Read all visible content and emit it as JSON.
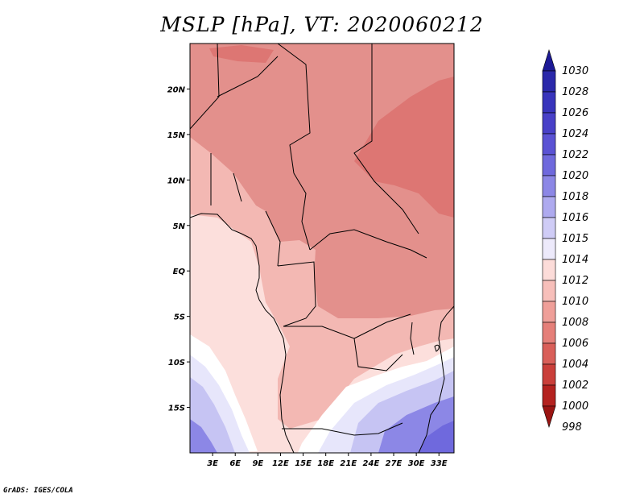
{
  "title": "MSLP [hPa], VT: 2020060212",
  "credit": "GrADS: IGES/COLA",
  "map": {
    "region": "Central and Southern Africa",
    "lon_range": [
      0,
      35
    ],
    "lat_range": [
      -20,
      25
    ],
    "lon_ticks": [
      {
        "value": 3,
        "label": "3E"
      },
      {
        "value": 6,
        "label": "6E"
      },
      {
        "value": 9,
        "label": "9E"
      },
      {
        "value": 12,
        "label": "12E"
      },
      {
        "value": 15,
        "label": "15E"
      },
      {
        "value": 18,
        "label": "18E"
      },
      {
        "value": 21,
        "label": "21E"
      },
      {
        "value": 24,
        "label": "24E"
      },
      {
        "value": 27,
        "label": "27E"
      },
      {
        "value": 30,
        "label": "30E"
      },
      {
        "value": 33,
        "label": "33E"
      }
    ],
    "lat_ticks": [
      {
        "value": 20,
        "label": "20N"
      },
      {
        "value": 15,
        "label": "15N"
      },
      {
        "value": 10,
        "label": "10N"
      },
      {
        "value": 5,
        "label": "5N"
      },
      {
        "value": 0,
        "label": "EQ"
      },
      {
        "value": -5,
        "label": "5S"
      },
      {
        "value": -10,
        "label": "10S"
      },
      {
        "value": -15,
        "label": "15S"
      }
    ]
  },
  "colorbar": {
    "levels": [
      "1030",
      "1028",
      "1026",
      "1024",
      "1022",
      "1020",
      "1018",
      "1016",
      "1015",
      "1014",
      "1012",
      "1010",
      "1008",
      "1006",
      "1004",
      "1002",
      "1000",
      "998"
    ],
    "colors": [
      "#1d1a96",
      "#2a28aa",
      "#3834bc",
      "#4840c8",
      "#5a52d4",
      "#6f69dd",
      "#8c87e6",
      "#aeaaef",
      "#cfccf6",
      "#edeafb",
      "#fcdcd9",
      "#f7bfba",
      "#ef9f99",
      "#e57f79",
      "#d95f59",
      "#ca3f3a",
      "#b4221f",
      "#9a1412"
    ]
  },
  "pressure_zones": [
    {
      "level": "1008-1010",
      "color": "#e3908c"
    },
    {
      "level": "1006-1008",
      "color": "#dd7673"
    },
    {
      "level": "1010-1012",
      "color": "#f3b8b3"
    },
    {
      "level": "1012-1014",
      "color": "#fcdfdc"
    },
    {
      "level": "1014-1015",
      "color": "#ffffff"
    },
    {
      "level": "1015-1016",
      "color": "#e7e6fb"
    },
    {
      "level": "1016-1018",
      "color": "#c6c4f3"
    },
    {
      "level": "1018-1020",
      "color": "#8c87e6"
    },
    {
      "level": "1020-1022",
      "color": "#6f69dd"
    }
  ]
}
